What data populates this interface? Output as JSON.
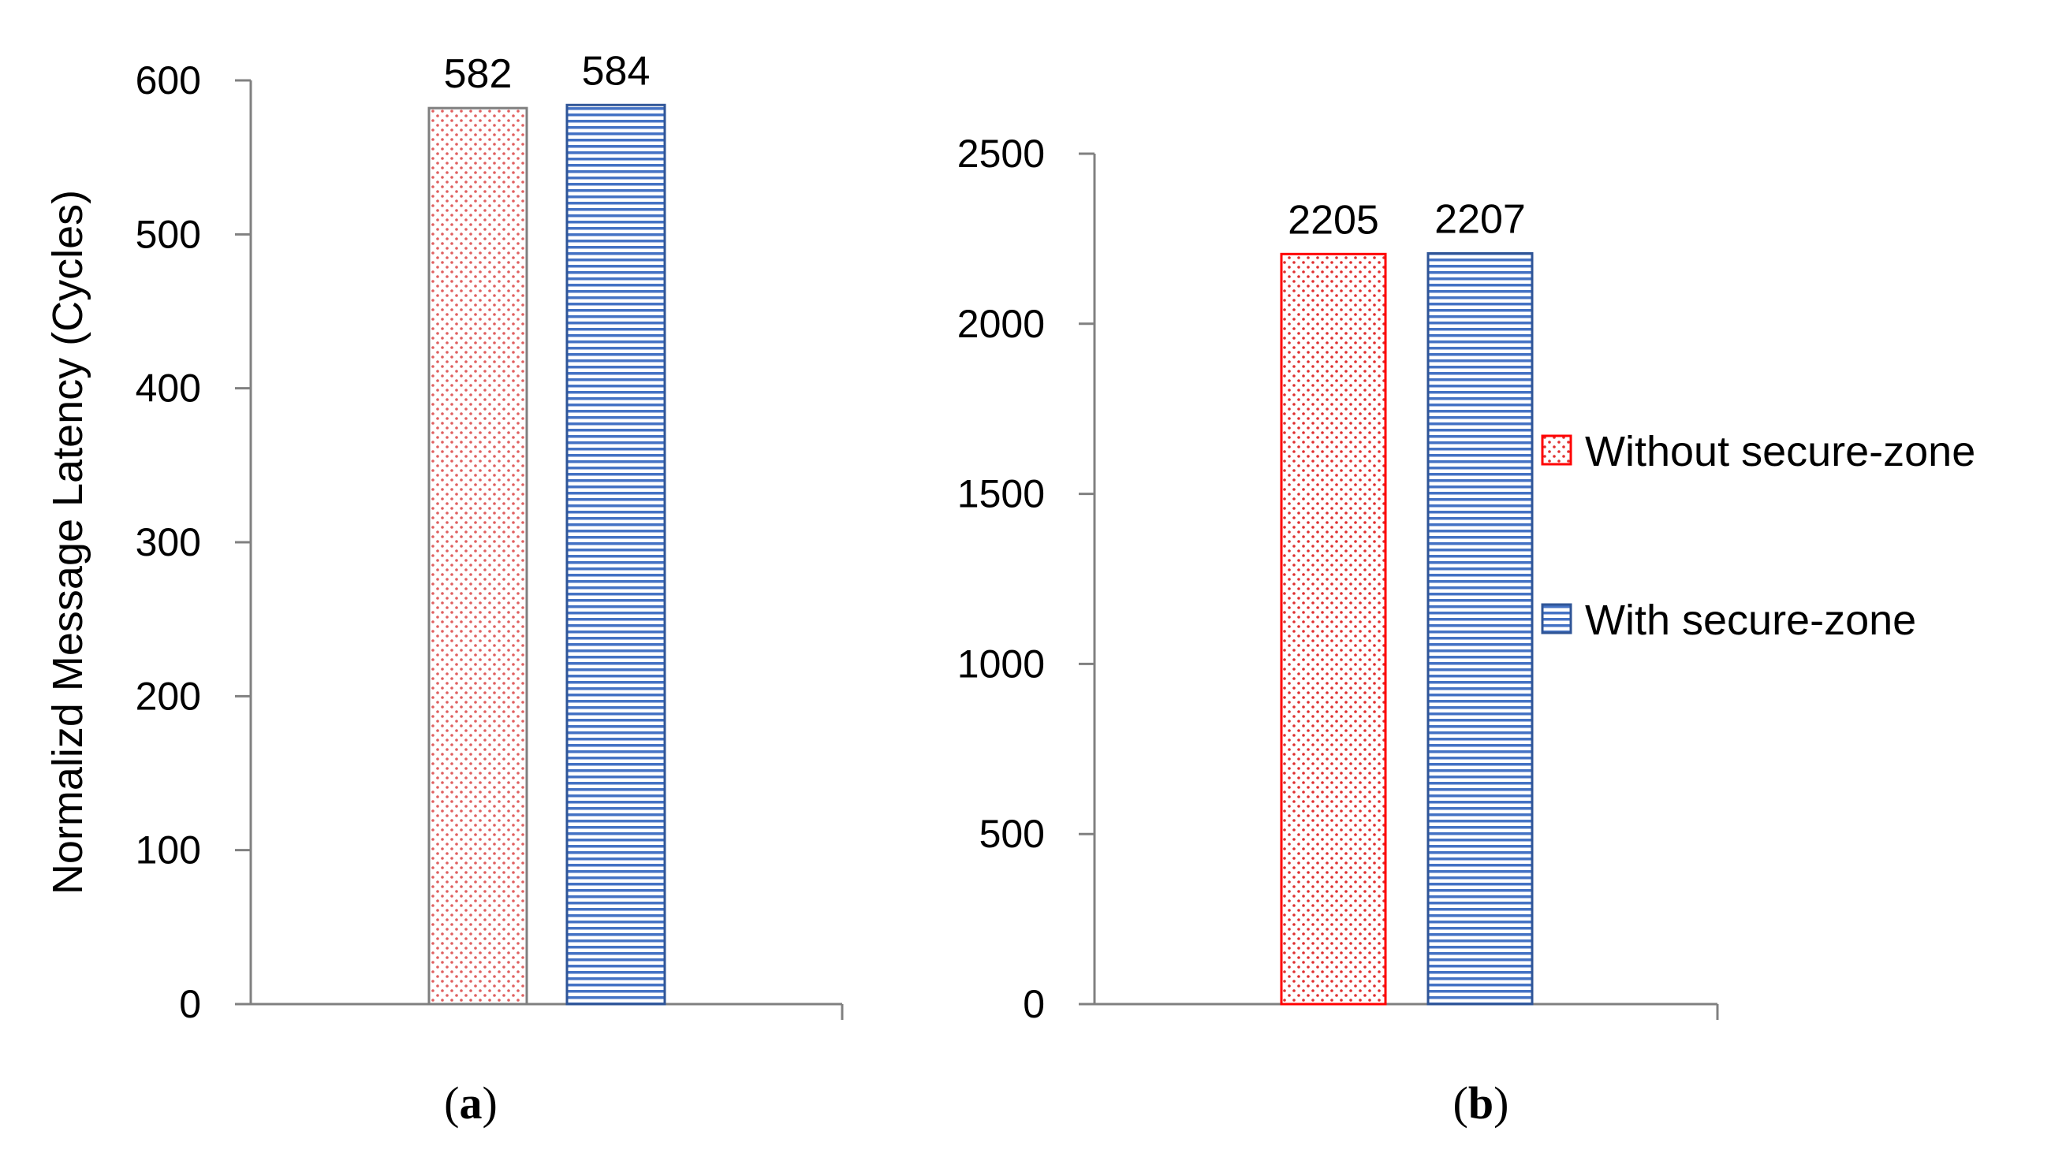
{
  "legend": {
    "items": [
      {
        "label": "Without secure-zone"
      },
      {
        "label": "With secure-zone"
      }
    ]
  },
  "chart_data": [
    {
      "type": "bar",
      "panel": "a",
      "caption_open": "(",
      "caption_letter": "a",
      "caption_close": ")",
      "ylabel": "Normalizd Message Latency (Cycles)",
      "ylim": [
        0,
        600
      ],
      "yticks": [
        0,
        100,
        200,
        300,
        400,
        500,
        600
      ],
      "categories": [
        ""
      ],
      "series": [
        {
          "name": "Without secure-zone",
          "values": [
            582
          ],
          "stroke": "#7f7f7f",
          "dot": "#e06060"
        },
        {
          "name": "With secure-zone",
          "values": [
            584
          ],
          "stroke": "#2f5597",
          "line": "#4472c4"
        }
      ],
      "data_labels": [
        "582",
        "584"
      ],
      "grid": false
    },
    {
      "type": "bar",
      "panel": "b",
      "caption_open": "(",
      "caption_letter": "b",
      "caption_close": ")",
      "ylabel": "",
      "ylim": [
        0,
        2500
      ],
      "yticks": [
        0,
        500,
        1000,
        1500,
        2000,
        2500
      ],
      "categories": [
        ""
      ],
      "series": [
        {
          "name": "Without secure-zone",
          "values": [
            2205
          ],
          "stroke": "#ff0000",
          "dot": "#e03030"
        },
        {
          "name": "With secure-zone",
          "values": [
            2207
          ],
          "stroke": "#2f5597",
          "line": "#4472c4"
        }
      ],
      "data_labels": [
        "2205",
        "2207"
      ],
      "grid": false,
      "legend_position": "right"
    }
  ]
}
